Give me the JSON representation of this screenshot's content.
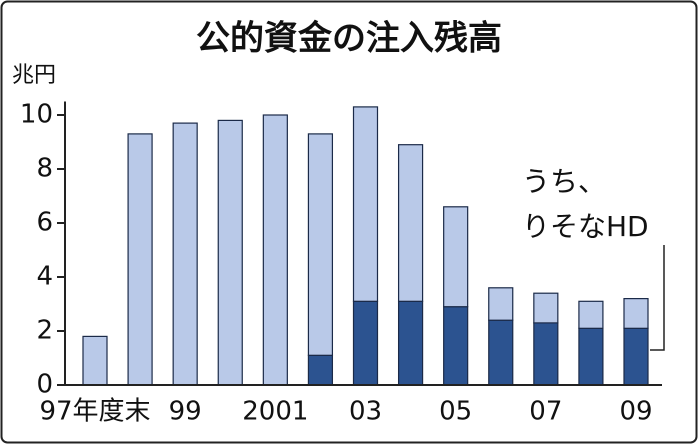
{
  "chart_data": {
    "type": "stacked-bar",
    "title": "公的資金の注入残高",
    "y_label": "兆円",
    "categories": [
      "97年度末",
      null,
      "99",
      null,
      "2001",
      null,
      "03",
      null,
      "05",
      null,
      "07",
      null,
      "09"
    ],
    "series": [
      {
        "color": "#2c5390",
        "values": [
          null,
          null,
          null,
          null,
          null,
          1.1,
          3.1,
          3.1,
          2.9,
          2.4,
          2.3,
          2.1,
          2.1
        ]
      },
      {
        "color": "#b9c9e8",
        "values": [
          1.8,
          9.3,
          9.7,
          9.8,
          10.0,
          8.2,
          7.2,
          5.8,
          3.7,
          1.2,
          1.1,
          1.0,
          1.1
        ]
      }
    ],
    "annotation": [
      "うち、",
      "りそなHD"
    ],
    "ylim": [
      0,
      10.5
    ],
    "yticks": [
      0,
      2,
      4,
      6,
      8,
      10
    ]
  }
}
